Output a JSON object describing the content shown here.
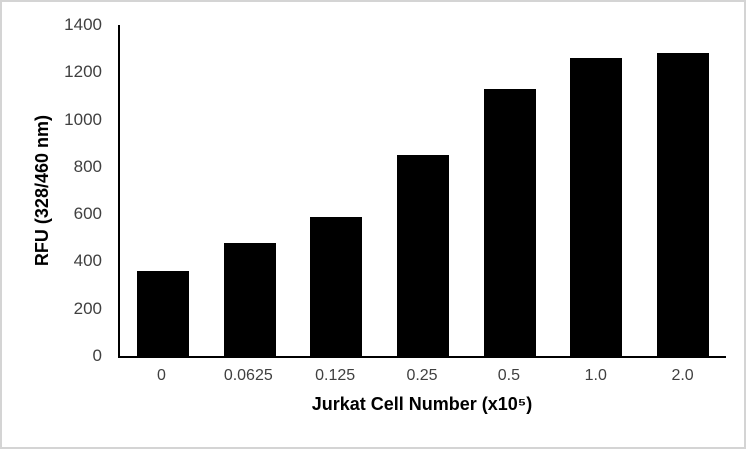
{
  "frame": {
    "background": "#ffffff",
    "border_color": "#d4d4d4"
  },
  "chart_data": {
    "type": "bar",
    "title": "",
    "categories": [
      "0",
      "0.0625",
      "0.125",
      "0.25",
      "0.5",
      "1.0",
      "2.0"
    ],
    "values": [
      360,
      480,
      590,
      850,
      1130,
      1260,
      1280
    ],
    "xlabel": "Jurkat Cell Number (x10⁵)",
    "ylabel": "RFU (328/460 nm)",
    "ylim": [
      0,
      1400
    ],
    "yticks": [
      0,
      200,
      400,
      600,
      800,
      1000,
      1200,
      1400
    ],
    "grid": false,
    "legend": false,
    "bar_color": "#000000",
    "axis_color": "#000000",
    "tick_label_color": "#404040",
    "axis_title_color": "#000000"
  }
}
